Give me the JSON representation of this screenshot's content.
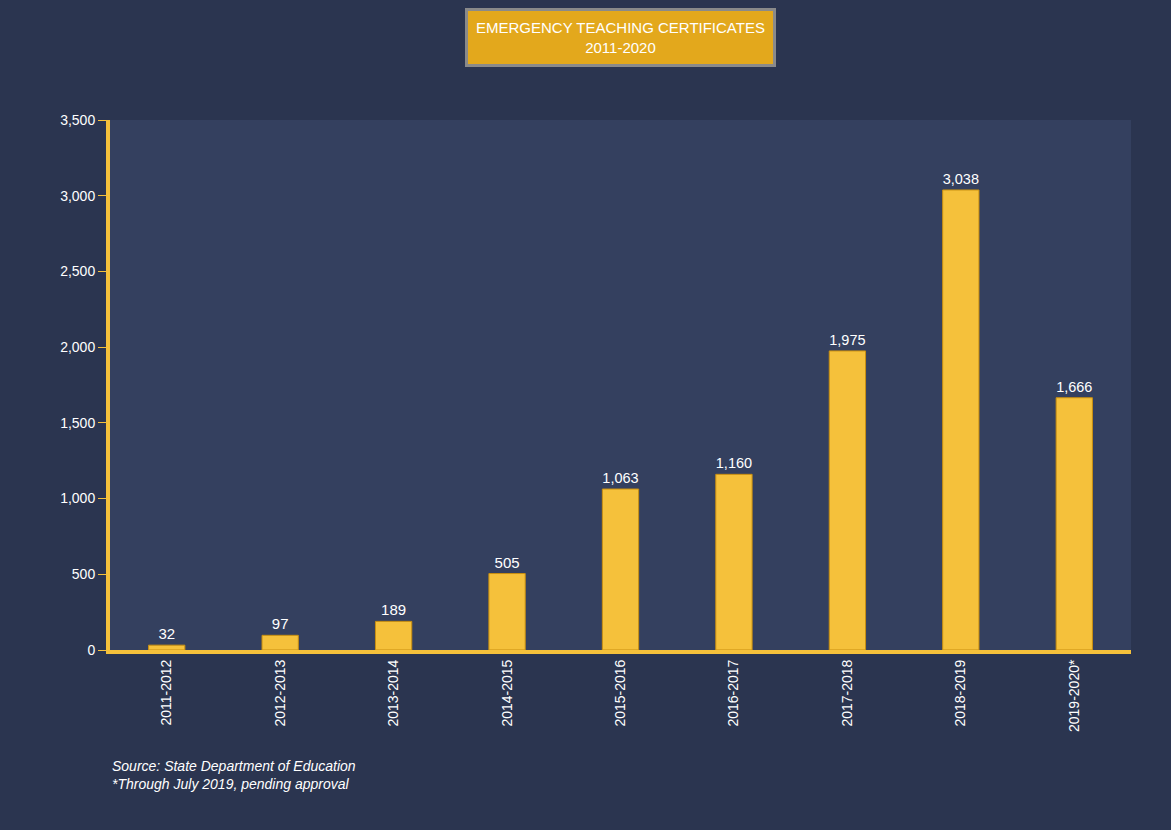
{
  "chart_data": {
    "type": "bar",
    "title": "EMERGENCY TEACHING CERTIFICATES",
    "subtitle": "2011-2020",
    "categories": [
      "2011-2012",
      "2012-2013",
      "2013-2014",
      "2014-2015",
      "2015-2016",
      "2016-2017",
      "2017-2018",
      "2018-2019",
      "2019-2020*"
    ],
    "values": [
      32,
      97,
      189,
      505,
      1063,
      1160,
      1975,
      3038,
      1666
    ],
    "value_labels": [
      "32",
      "97",
      "189",
      "505",
      "1,063",
      "1,160",
      "1,975",
      "3,038",
      "1,666"
    ],
    "color": "#f5c13b",
    "ylim": [
      0,
      3500
    ],
    "yticks": [
      0,
      500,
      {
        "value": 1000,
        "label": "1,000"
      },
      {
        "value": 1500,
        "label": "1,500"
      },
      {
        "value": 2000,
        "label": "2,000"
      },
      {
        "value": 2500,
        "label": "2,500"
      },
      {
        "value": 3000,
        "label": "3,000"
      },
      {
        "value": 3500,
        "label": "3,500"
      }
    ],
    "grid": false,
    "data_labels": true,
    "annotations": [
      "Source: State Department of Education",
      "*Through July 2019, pending approval"
    ]
  }
}
